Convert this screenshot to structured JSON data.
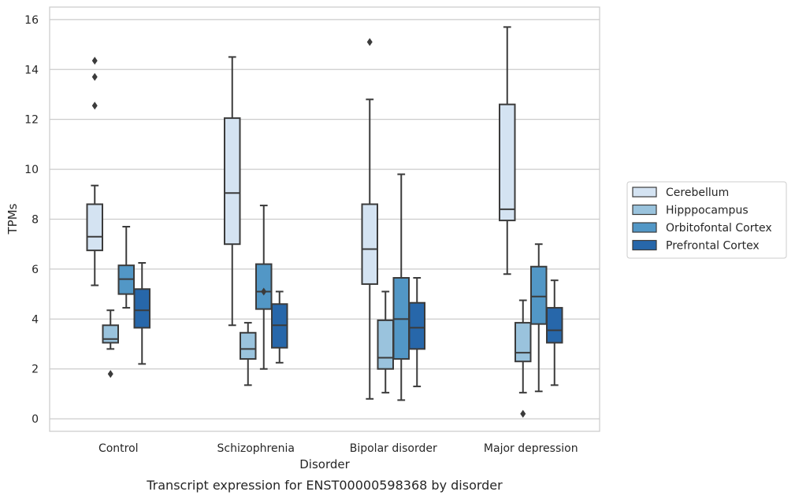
{
  "chart_data": {
    "type": "box",
    "caption": "Transcript expression for ENST00000598368 by disorder",
    "xlabel": "Disorder",
    "ylabel": "TPMs",
    "ylim": [
      -0.5,
      16.5
    ],
    "yticks": [
      0,
      2,
      4,
      6,
      8,
      10,
      12,
      14,
      16
    ],
    "grid": "horizontal",
    "legend_position": "right",
    "categories": [
      "Control",
      "Schizophrenia",
      "Bipolar disorder",
      "Major depression"
    ],
    "series": [
      {
        "name": "Cerebellum",
        "color": "#d4e3f2",
        "boxes": [
          {
            "whislo": 5.35,
            "q1": 6.75,
            "med": 7.3,
            "q3": 8.6,
            "whishi": 9.35,
            "fliers": [
              12.55,
              13.7,
              14.35
            ]
          },
          {
            "whislo": 3.75,
            "q1": 7.0,
            "med": 9.05,
            "q3": 12.05,
            "whishi": 14.5,
            "fliers": []
          },
          {
            "whislo": 0.8,
            "q1": 5.4,
            "med": 6.8,
            "q3": 8.6,
            "whishi": 12.8,
            "fliers": [
              15.1
            ]
          },
          {
            "whislo": 5.8,
            "q1": 7.95,
            "med": 8.4,
            "q3": 12.6,
            "whishi": 15.7,
            "fliers": []
          }
        ]
      },
      {
        "name": "Hipppocampus",
        "color": "#9ac3dd",
        "boxes": [
          {
            "whislo": 2.8,
            "q1": 3.05,
            "med": 3.2,
            "q3": 3.75,
            "whishi": 4.35,
            "fliers": [
              1.8
            ]
          },
          {
            "whislo": 1.35,
            "q1": 2.4,
            "med": 2.8,
            "q3": 3.45,
            "whishi": 3.85,
            "fliers": []
          },
          {
            "whislo": 1.05,
            "q1": 2.0,
            "med": 2.45,
            "q3": 3.95,
            "whishi": 5.1,
            "fliers": []
          },
          {
            "whislo": 1.05,
            "q1": 2.3,
            "med": 2.65,
            "q3": 3.85,
            "whishi": 4.75,
            "fliers": [
              0.2
            ]
          }
        ]
      },
      {
        "name": "Orbitofontal Cortex",
        "color": "#5297c6",
        "boxes": [
          {
            "whislo": 4.45,
            "q1": 5.0,
            "med": 5.6,
            "q3": 6.15,
            "whishi": 7.7,
            "fliers": []
          },
          {
            "whislo": 2.0,
            "q1": 4.4,
            "med": 5.1,
            "q3": 6.2,
            "whishi": 8.55,
            "fliers": [
              5.1
            ]
          },
          {
            "whislo": 0.75,
            "q1": 2.4,
            "med": 4.0,
            "q3": 5.65,
            "whishi": 9.8,
            "fliers": []
          },
          {
            "whislo": 1.1,
            "q1": 3.8,
            "med": 4.9,
            "q3": 6.1,
            "whishi": 7.0,
            "fliers": []
          }
        ]
      },
      {
        "name": "Prefrontal Cortex",
        "color": "#2767aa",
        "boxes": [
          {
            "whislo": 2.2,
            "q1": 3.65,
            "med": 4.35,
            "q3": 5.2,
            "whishi": 6.25,
            "fliers": []
          },
          {
            "whislo": 2.25,
            "q1": 2.85,
            "med": 3.75,
            "q3": 4.6,
            "whishi": 5.1,
            "fliers": []
          },
          {
            "whislo": 1.3,
            "q1": 2.8,
            "med": 3.65,
            "q3": 4.65,
            "whishi": 5.65,
            "fliers": []
          },
          {
            "whislo": 1.35,
            "q1": 3.05,
            "med": 3.55,
            "q3": 4.45,
            "whishi": 5.55,
            "fliers": []
          }
        ]
      }
    ]
  }
}
